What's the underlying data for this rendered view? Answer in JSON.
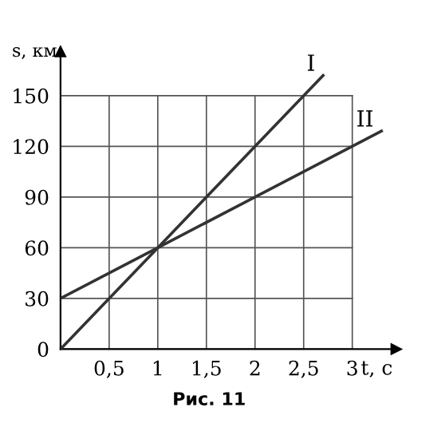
{
  "chart_data": {
    "type": "line",
    "xlabel": "t, с",
    "ylabel": "s, км",
    "annotations": [
      "Рис. 11"
    ],
    "series": [
      {
        "name": "I",
        "color": "#333333",
        "x": [
          0,
          1,
          2.7
        ],
        "values": [
          0,
          60,
          162
        ]
      },
      {
        "name": "II",
        "color": "#333333",
        "x": [
          0,
          1,
          3.3
        ],
        "values": [
          30,
          60,
          129
        ]
      }
    ],
    "xlim": [
      0,
      3.45
    ],
    "ylim": [
      0,
      176
    ],
    "xticks": [
      {
        "value": 0.5,
        "label": "0,5"
      },
      1,
      {
        "value": 1.5,
        "label": "1,5"
      },
      2,
      {
        "value": 2.5,
        "label": "2,5"
      },
      3
    ],
    "yticks": [
      0,
      30,
      60,
      90,
      120,
      150
    ],
    "grid": true,
    "legend": false,
    "marker": "none",
    "line_style": "solid"
  }
}
